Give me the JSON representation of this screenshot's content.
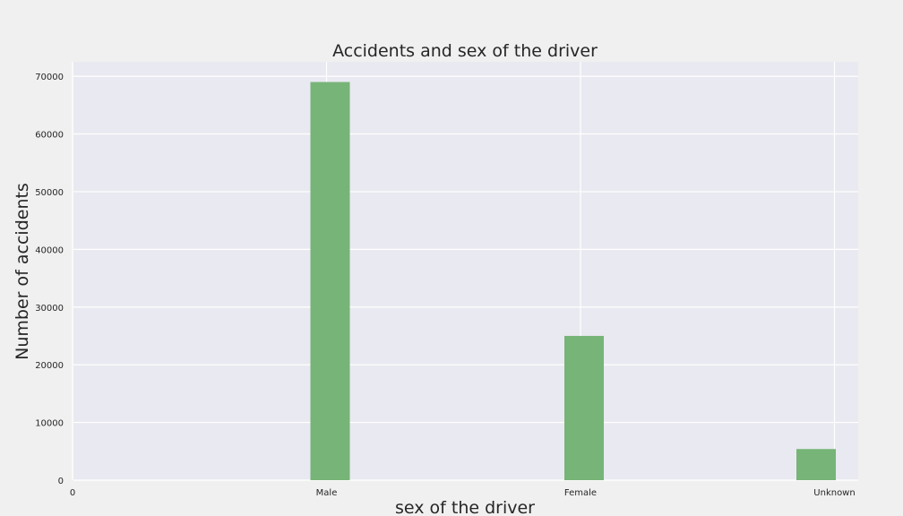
{
  "chart_data": {
    "type": "bar",
    "title": "Accidents and sex of the driver",
    "xlabel": "sex of the driver",
    "ylabel": "Number of accidents",
    "x_ticks": [
      {
        "label": "0",
        "pos": 0
      },
      {
        "label": "Male",
        "pos": 1
      },
      {
        "label": "Female",
        "pos": 2
      },
      {
        "label": "Unknown",
        "pos": 3
      }
    ],
    "bars": [
      {
        "category": "Male",
        "value": 69000
      },
      {
        "category": "Female",
        "value": 25000
      },
      {
        "category": "Unknown",
        "value": 5400
      }
    ],
    "ylim": [
      0,
      72500
    ],
    "y_ticks": [
      0,
      10000,
      20000,
      30000,
      40000,
      50000,
      60000,
      70000
    ],
    "grid": true,
    "legend": "none",
    "colors": {
      "bar": "#77b477",
      "plot_bg": "#e9e9f1",
      "figure_bg": "#f0f0f0",
      "grid": "#ffffff"
    }
  }
}
